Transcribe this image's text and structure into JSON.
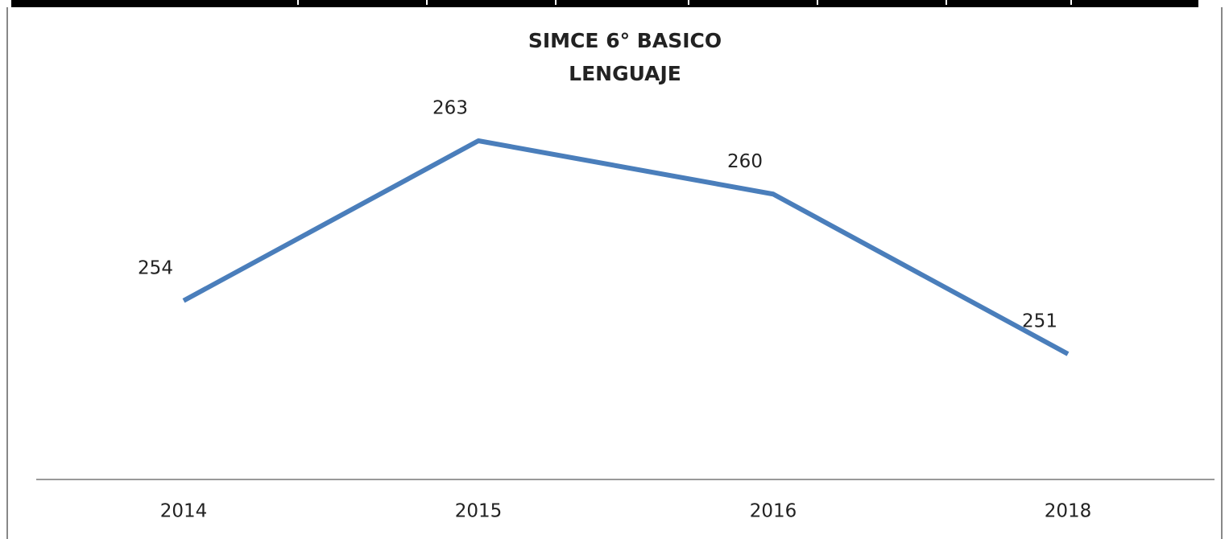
{
  "chart_data": {
    "type": "line",
    "title": [
      "SIMCE 6° BASICO",
      "LENGUAJE"
    ],
    "categories": [
      "2014",
      "2015",
      "2016",
      "2018"
    ],
    "series": [
      {
        "color": "#4a7ebb",
        "values": [
          254,
          263,
          260,
          251
        ]
      }
    ]
  }
}
